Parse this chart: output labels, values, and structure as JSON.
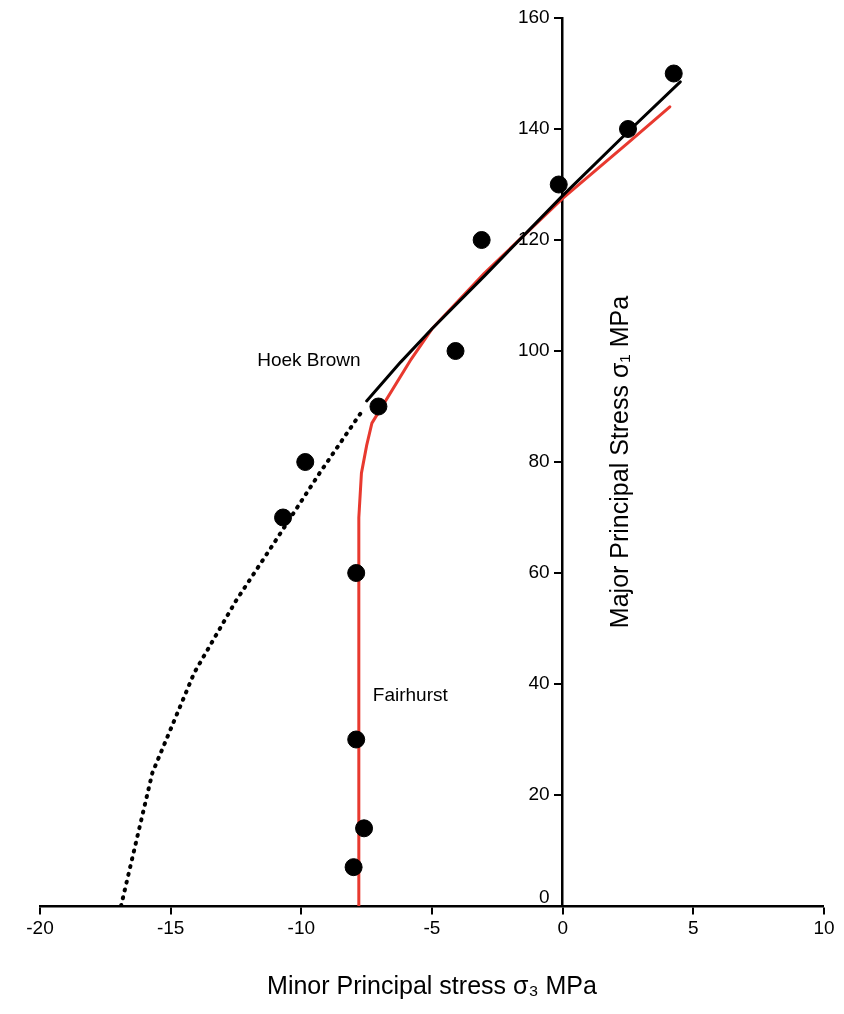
{
  "chart_data": {
    "type": "line",
    "xlabel": "Minor Principal stress σ₃ MPa",
    "ylabel": "Major Principal Stress σ₁ MPa",
    "xlim": [
      -20,
      10
    ],
    "xticks": [
      -20,
      -15,
      -10,
      -5,
      0,
      5,
      10
    ],
    "ylim": [
      0,
      160
    ],
    "yticks": [
      0,
      20,
      40,
      60,
      80,
      100,
      120,
      140,
      160
    ],
    "grid": false,
    "legend": false,
    "series": [
      {
        "name": "Hoek Brown",
        "color": "#000000",
        "line_style": "solid",
        "marker": "none",
        "x": [
          -7.5,
          -6.2,
          -5,
          -3,
          0,
          2.5,
          4.5
        ],
        "values": [
          91,
          98,
          104,
          113.5,
          128,
          139.5,
          148.5
        ]
      },
      {
        "name": "Fairhurst",
        "color": "#e8392f",
        "line_style": "solid",
        "marker": "none",
        "x": [
          -7.8,
          -7.8,
          -7.7,
          -7.5,
          -7.3,
          -5.8,
          -5,
          -3,
          0,
          2.5,
          4.1
        ],
        "values": [
          0,
          70,
          78,
          83,
          87,
          98.5,
          104,
          114,
          127.5,
          137.5,
          144
        ]
      },
      {
        "color": "#000000",
        "line_style": "dotted",
        "marker": "none",
        "x": [
          -16.9,
          -15.7,
          -14.1,
          -12.5,
          -11.1,
          -9.3,
          -7.7
        ],
        "values": [
          0,
          24,
          42,
          55,
          65,
          78,
          89
        ]
      },
      {
        "type": "scatter",
        "color": "#000000",
        "marker": "circle",
        "x": [
          4.25,
          2.5,
          -0.15,
          -3.1,
          -4.1,
          -7.05,
          -9.85,
          -10.7,
          -7.9,
          -7.9,
          -7.6,
          -8.0
        ],
        "values": [
          150,
          140,
          130,
          120,
          100,
          90,
          80,
          70,
          60,
          30,
          14,
          7
        ]
      }
    ]
  }
}
